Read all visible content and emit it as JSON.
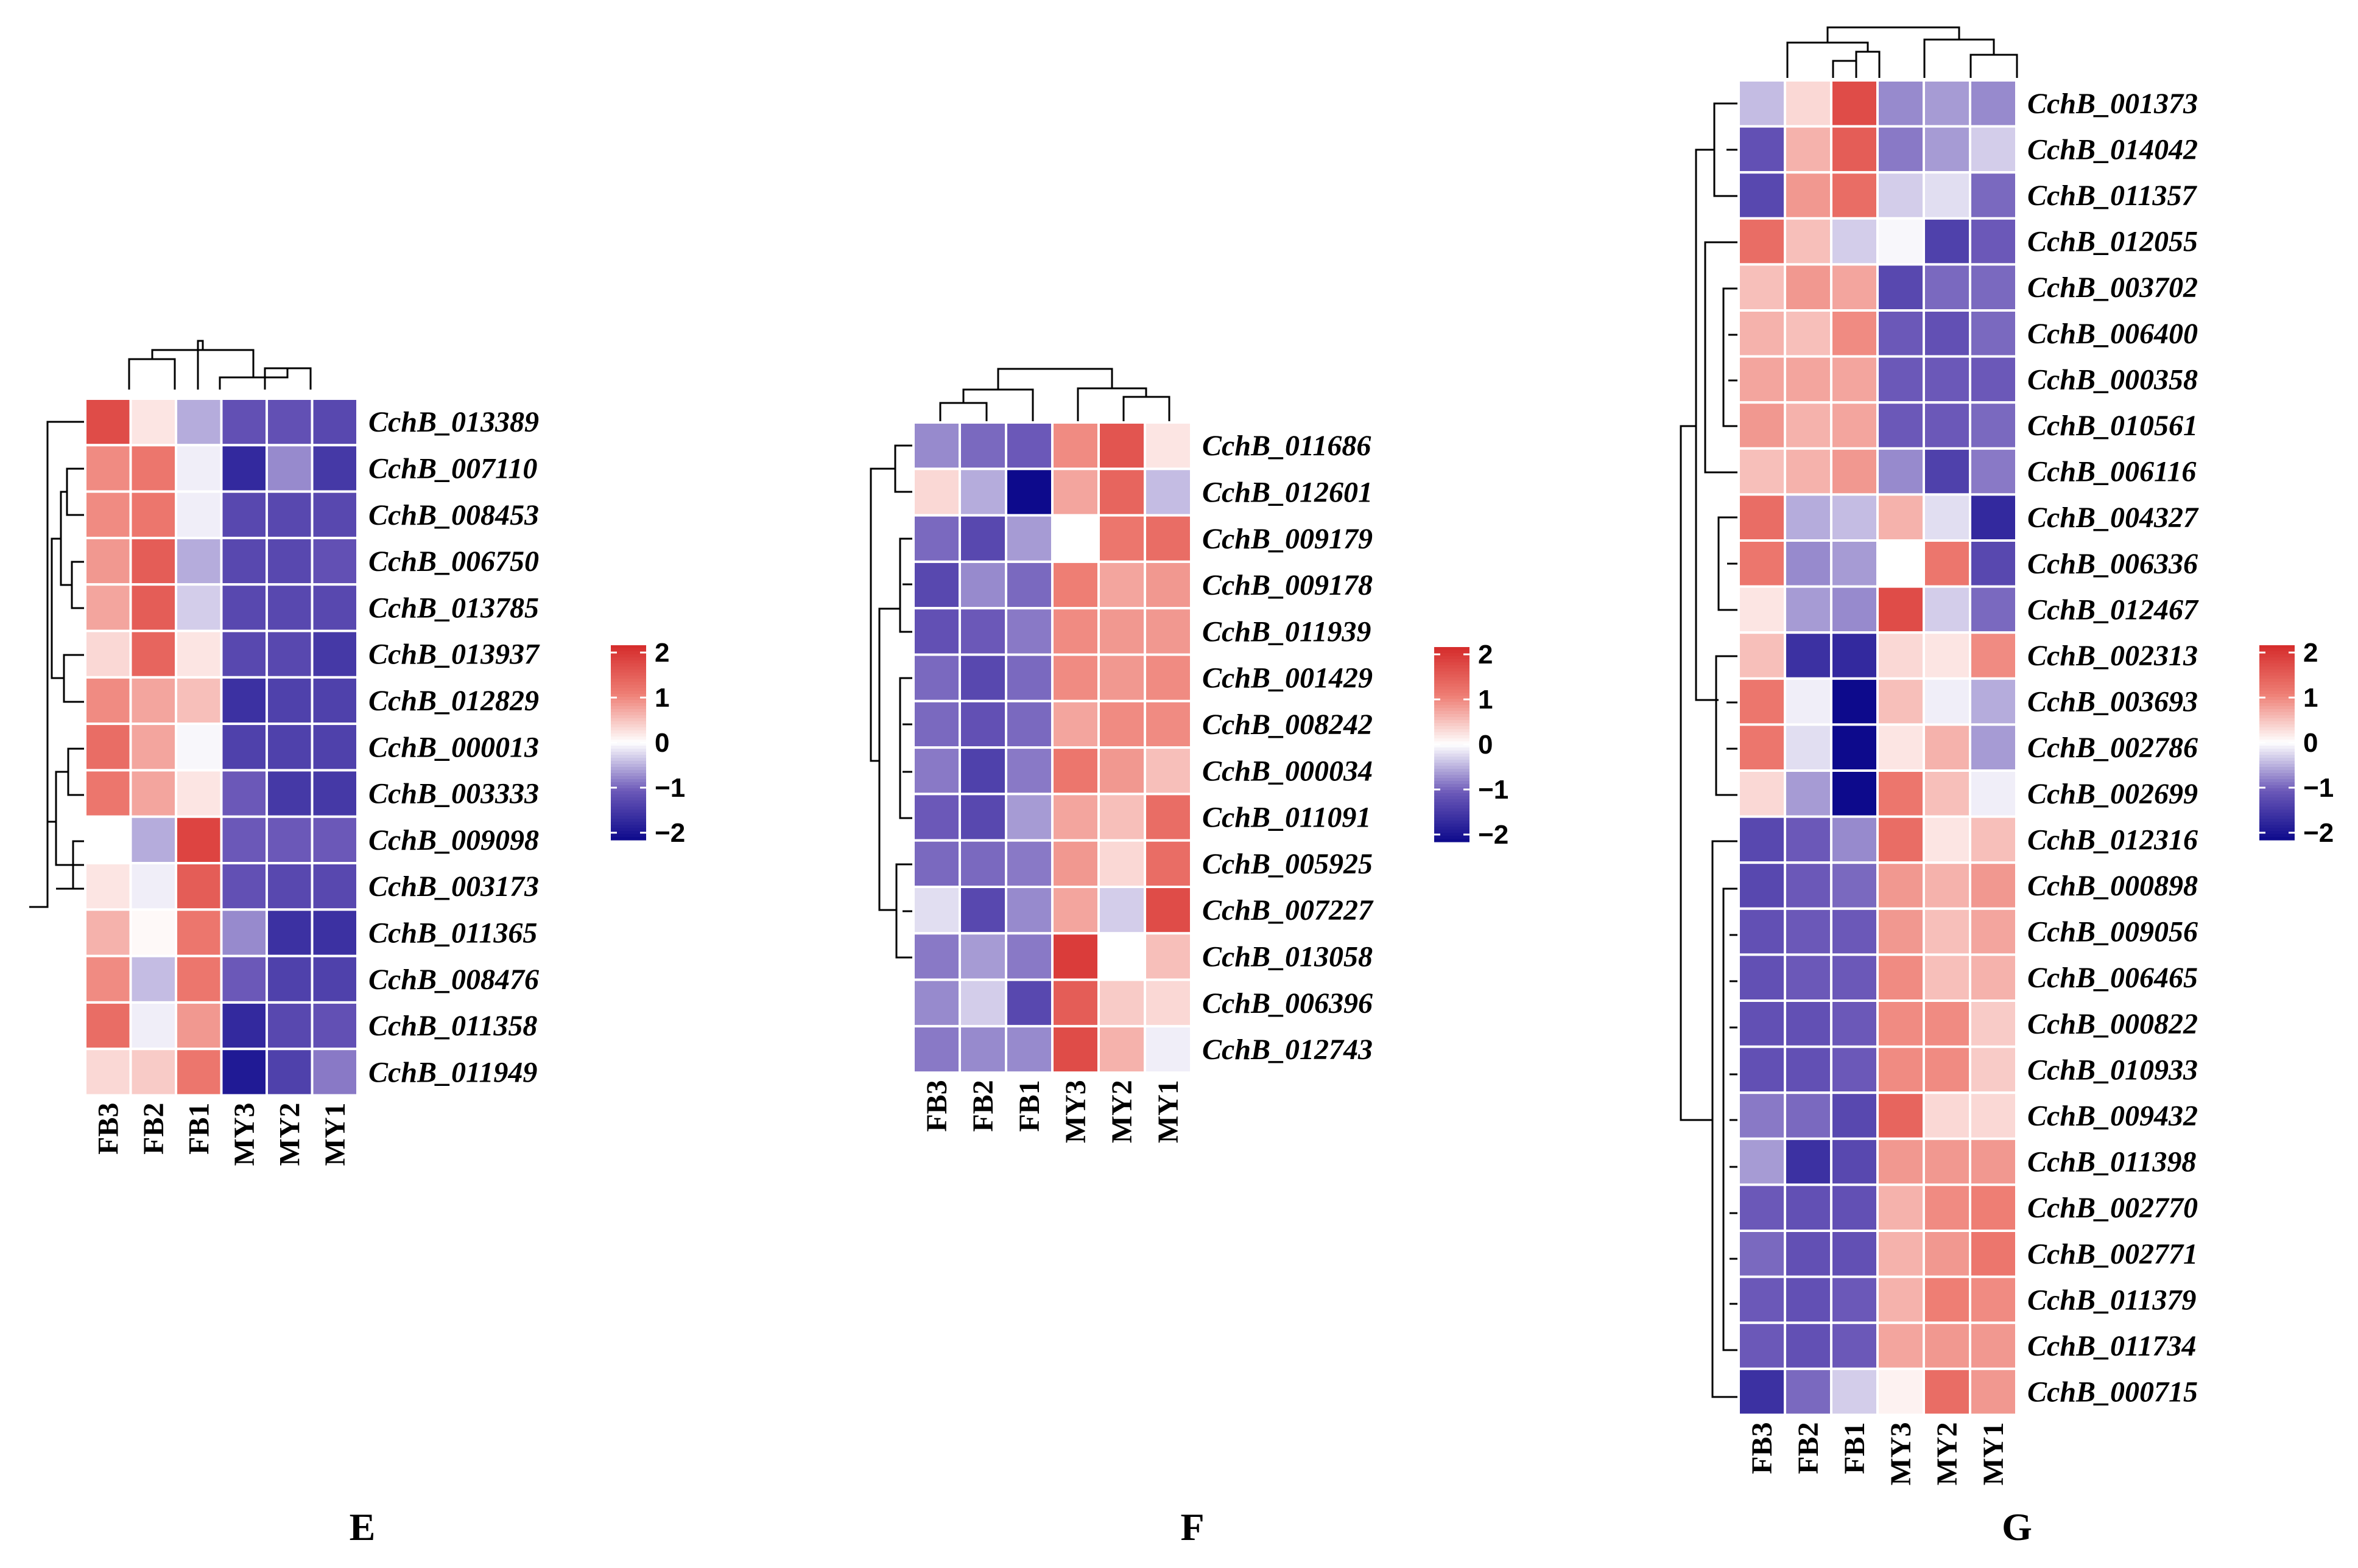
{
  "colors": {
    "low": "#0d0a8c",
    "mid": "#ffffff",
    "high": "#d52b2b",
    "midLow": "#6b58b8",
    "midHigh": "#ee7e74"
  },
  "legend": {
    "min": -2,
    "max": 2,
    "ticks": [
      "2",
      "1",
      "0",
      "−1",
      "−2"
    ]
  },
  "chart_data": [
    {
      "type": "heatmap",
      "panel": "E",
      "columns": [
        "FB3",
        "FB2",
        "FB1",
        "MY3",
        "MY2",
        "MY1"
      ],
      "rows": [
        "CchB_013389",
        "CchB_007110",
        "CchB_008453",
        "CchB_006750",
        "CchB_013785",
        "CchB_013937",
        "CchB_012829",
        "CchB_000013",
        "CchB_003333",
        "CchB_009098",
        "CchB_003173",
        "CchB_011365",
        "CchB_008476",
        "CchB_011358",
        "CchB_011949"
      ],
      "values": [
        [
          1.6,
          0.2,
          -0.5,
          -1.1,
          -1.1,
          -1.2
        ],
        [
          0.9,
          1.1,
          -0.1,
          -1.6,
          -0.7,
          -1.4
        ],
        [
          0.9,
          1.1,
          -0.1,
          -1.2,
          -1.2,
          -1.2
        ],
        [
          0.8,
          1.4,
          -0.5,
          -1.2,
          -1.2,
          -1.1
        ],
        [
          0.7,
          1.4,
          -0.3,
          -1.2,
          -1.2,
          -1.2
        ],
        [
          0.3,
          1.3,
          0.2,
          -1.2,
          -1.2,
          -1.4
        ],
        [
          0.9,
          0.7,
          0.5,
          -1.5,
          -1.3,
          -1.3
        ],
        [
          1.2,
          0.7,
          -0.05,
          -1.3,
          -1.3,
          -1.3
        ],
        [
          1.1,
          0.7,
          0.2,
          -1.0,
          -1.4,
          -1.4
        ],
        [
          0.0,
          -0.5,
          1.7,
          -1.0,
          -1.0,
          -1.0
        ],
        [
          0.2,
          -0.1,
          1.4,
          -1.1,
          -1.2,
          -1.2
        ],
        [
          0.6,
          0.05,
          1.1,
          -0.7,
          -1.5,
          -1.5
        ],
        [
          0.9,
          -0.4,
          1.1,
          -1.0,
          -1.3,
          -1.3
        ],
        [
          1.2,
          -0.1,
          0.8,
          -1.6,
          -1.2,
          -1.1
        ],
        [
          0.3,
          0.4,
          1.1,
          -1.8,
          -1.3,
          -0.8
        ]
      ]
    },
    {
      "type": "heatmap",
      "panel": "F",
      "columns": [
        "FB3",
        "FB2",
        "FB1",
        "MY3",
        "MY2",
        "MY1"
      ],
      "rows": [
        "CchB_011686",
        "CchB_012601",
        "CchB_009179",
        "CchB_009178",
        "CchB_011939",
        "CchB_001429",
        "CchB_008242",
        "CchB_000034",
        "CchB_011091",
        "CchB_005925",
        "CchB_007227",
        "CchB_013058",
        "CchB_006396",
        "CchB_012743"
      ],
      "values": [
        [
          -0.7,
          -0.9,
          -1.0,
          0.9,
          1.5,
          0.2
        ],
        [
          0.3,
          -0.5,
          -2.0,
          0.7,
          1.3,
          -0.4
        ],
        [
          -0.9,
          -1.2,
          -0.6,
          0.0,
          1.1,
          1.2
        ],
        [
          -1.2,
          -0.7,
          -0.9,
          1.0,
          0.7,
          0.8
        ],
        [
          -1.1,
          -1.0,
          -0.8,
          0.9,
          0.8,
          0.8
        ],
        [
          -0.9,
          -1.2,
          -0.9,
          0.9,
          0.8,
          0.9
        ],
        [
          -0.9,
          -1.1,
          -0.9,
          0.7,
          0.9,
          0.9
        ],
        [
          -0.8,
          -1.3,
          -0.8,
          1.1,
          0.8,
          0.5
        ],
        [
          -1.0,
          -1.2,
          -0.6,
          0.7,
          0.5,
          1.2
        ],
        [
          -0.9,
          -0.9,
          -0.8,
          0.8,
          0.3,
          1.2
        ],
        [
          -0.2,
          -1.2,
          -0.7,
          0.7,
          -0.3,
          1.6
        ],
        [
          -0.8,
          -0.6,
          -0.8,
          1.8,
          0.0,
          0.5
        ],
        [
          -0.7,
          -0.3,
          -1.2,
          1.4,
          0.4,
          0.3
        ],
        [
          -0.8,
          -0.7,
          -0.7,
          1.6,
          0.6,
          -0.1
        ]
      ]
    },
    {
      "type": "heatmap",
      "panel": "G",
      "columns": [
        "FB3",
        "FB2",
        "FB1",
        "MY3",
        "MY2",
        "MY1"
      ],
      "rows": [
        "CchB_001373",
        "CchB_014042",
        "CchB_011357",
        "CchB_012055",
        "CchB_003702",
        "CchB_006400",
        "CchB_000358",
        "CchB_010561",
        "CchB_006116",
        "CchB_004327",
        "CchB_006336",
        "CchB_012467",
        "CchB_002313",
        "CchB_003693",
        "CchB_002786",
        "CchB_002699",
        "CchB_012316",
        "CchB_000898",
        "CchB_009056",
        "CchB_006465",
        "CchB_000822",
        "CchB_010933",
        "CchB_009432",
        "CchB_011398",
        "CchB_002770",
        "CchB_002771",
        "CchB_011379",
        "CchB_011734",
        "CchB_000715"
      ],
      "values": [
        [
          -0.4,
          0.3,
          1.6,
          -0.7,
          -0.6,
          -0.7
        ],
        [
          -1.1,
          0.6,
          1.4,
          -0.8,
          -0.6,
          -0.3
        ],
        [
          -1.2,
          0.8,
          1.2,
          -0.3,
          -0.2,
          -0.9
        ],
        [
          1.2,
          0.5,
          -0.3,
          -0.05,
          -1.3,
          -1.0
        ],
        [
          0.5,
          0.8,
          0.7,
          -1.2,
          -0.9,
          -0.9
        ],
        [
          0.6,
          0.5,
          0.9,
          -1.0,
          -1.1,
          -0.9
        ],
        [
          0.7,
          0.7,
          0.7,
          -1.0,
          -1.0,
          -1.0
        ],
        [
          0.8,
          0.6,
          0.7,
          -1.0,
          -1.0,
          -0.9
        ],
        [
          0.5,
          0.6,
          0.8,
          -0.7,
          -1.3,
          -0.8
        ],
        [
          1.2,
          -0.5,
          -0.4,
          0.6,
          -0.2,
          -1.6
        ],
        [
          1.1,
          -0.7,
          -0.6,
          0.0,
          1.1,
          -1.2
        ],
        [
          0.2,
          -0.6,
          -0.7,
          1.6,
          -0.3,
          -0.9
        ],
        [
          0.5,
          -1.5,
          -1.6,
          0.3,
          0.2,
          0.9
        ],
        [
          1.1,
          -0.1,
          -2.0,
          0.5,
          -0.1,
          -0.5
        ],
        [
          1.1,
          -0.2,
          -2.0,
          0.2,
          0.6,
          -0.6
        ],
        [
          0.3,
          -0.6,
          -2.0,
          1.1,
          0.5,
          -0.1
        ],
        [
          -1.2,
          -1.0,
          -0.7,
          1.2,
          0.2,
          0.5
        ],
        [
          -1.2,
          -1.0,
          -0.9,
          0.8,
          0.6,
          0.8
        ],
        [
          -1.1,
          -1.0,
          -1.0,
          0.8,
          0.5,
          0.7
        ],
        [
          -1.1,
          -1.0,
          -1.0,
          0.9,
          0.5,
          0.6
        ],
        [
          -1.1,
          -1.1,
          -1.0,
          0.9,
          0.9,
          0.4
        ],
        [
          -1.1,
          -1.1,
          -1.0,
          0.9,
          0.9,
          0.4
        ],
        [
          -0.8,
          -0.9,
          -1.2,
          1.3,
          0.3,
          0.3
        ],
        [
          -0.6,
          -1.5,
          -1.2,
          0.8,
          0.8,
          0.8
        ],
        [
          -1.0,
          -1.1,
          -1.1,
          0.6,
          0.9,
          1.0
        ],
        [
          -0.9,
          -1.1,
          -1.1,
          0.6,
          0.8,
          1.1
        ],
        [
          -1.0,
          -1.1,
          -1.0,
          0.6,
          1.0,
          0.9
        ],
        [
          -1.0,
          -1.1,
          -1.0,
          0.7,
          0.8,
          0.8
        ],
        [
          -1.5,
          -0.9,
          -0.3,
          0.1,
          1.2,
          0.8
        ]
      ]
    }
  ]
}
